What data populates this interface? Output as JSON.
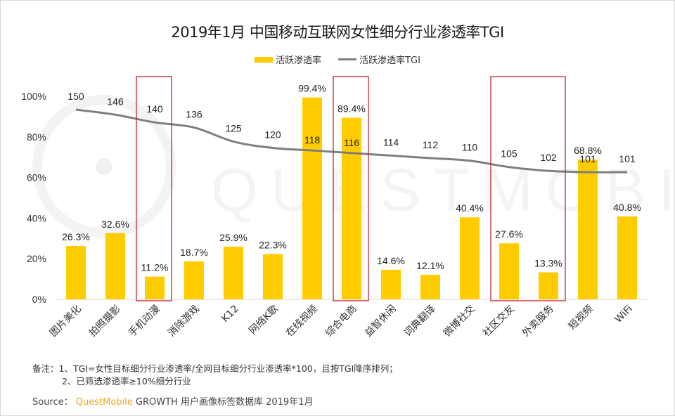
{
  "chart_data": {
    "type": "bar",
    "title": "2019年1月 中国移动互联网女性细分行业渗透率TGI",
    "xlabel": "",
    "ylabel": "",
    "ylim": [
      0,
      1.0
    ],
    "yticks": [
      "0%",
      "20%",
      "40%",
      "60%",
      "80%",
      "100%"
    ],
    "ytick_values": [
      0,
      0.2,
      0.4,
      0.6,
      0.8,
      1.0
    ],
    "grid": false,
    "legend_position": "top-center",
    "categories": [
      "图片美化",
      "拍照摄影",
      "手机动漫",
      "消除游戏",
      "K12",
      "网络K歌",
      "在线视频",
      "综合电商",
      "益智休闲",
      "词典翻译",
      "微博社交",
      "社区交友",
      "外卖服务",
      "短视频",
      "WiFi"
    ],
    "series": [
      {
        "name": "活跃渗透率",
        "type": "bar",
        "color": "#FFCC00",
        "values": [
          0.263,
          0.326,
          0.112,
          0.187,
          0.259,
          0.223,
          0.994,
          0.894,
          0.146,
          0.121,
          0.404,
          0.276,
          0.133,
          0.688,
          0.408
        ],
        "labels": [
          "26.3%",
          "32.6%",
          "11.2%",
          "18.7%",
          "25.9%",
          "22.3%",
          "99.4%",
          "89.4%",
          "14.6%",
          "12.1%",
          "40.4%",
          "27.6%",
          "13.3%",
          "68.8%",
          "40.8%"
        ]
      },
      {
        "name": "活跃渗透率TGI",
        "type": "line",
        "color": "#7f7f7f",
        "axis": "secondary",
        "values": [
          150,
          146,
          140,
          136,
          125,
          120,
          118,
          116,
          114,
          112,
          110,
          105,
          102,
          101,
          101
        ]
      }
    ],
    "highlight_groups": [
      [
        "手机动漫"
      ],
      [
        "综合电商"
      ],
      [
        "社区交友",
        "外卖服务"
      ]
    ],
    "highlight_color": "#C0272D"
  },
  "notes": {
    "line1": "备注：1、TGI=女性目标细分行业渗透率/全网目标细分行业渗透率*100，且按TGI降序排列；",
    "line2": "2、已筛选渗透率≥10%细分行业"
  },
  "source": {
    "prefix": "Source：",
    "brand": "QuestMobile",
    "rest": " GROWTH 用户画像标签数据库 2019年1月"
  },
  "watermark": "QUESTMOBILE"
}
